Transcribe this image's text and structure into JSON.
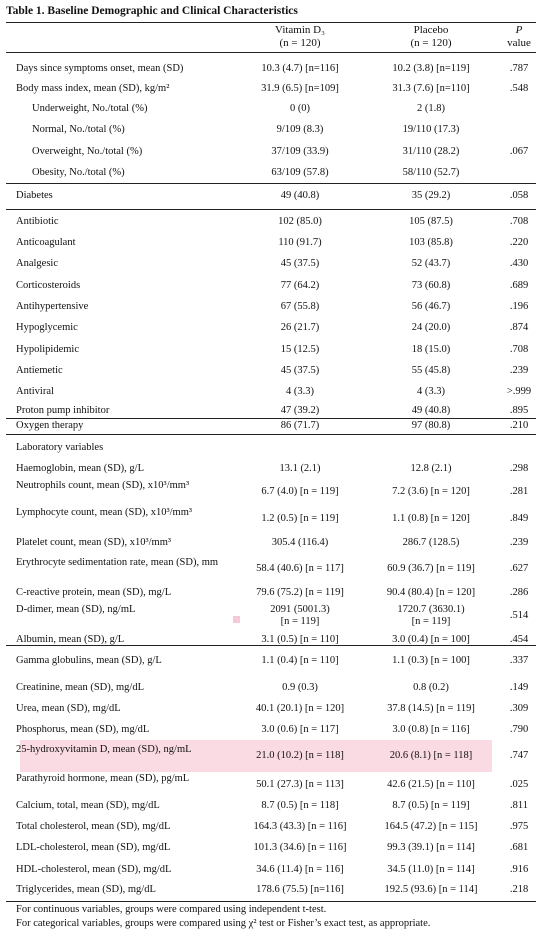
{
  "title": "Table 1. Baseline Demographic and Clinical Characteristics",
  "header": {
    "group1": "Vitamin D₃",
    "n1": "(n = 120)",
    "group2": "Placebo",
    "n2": "(n = 120)",
    "p1": "P",
    "p2": "value"
  },
  "rows": [
    {
      "label": "Days since symptoms onset, mean (SD)",
      "v1": "10.3 (4.7) [n=116]",
      "v2": "10.2 (3.8) [n=119]",
      "p": ".787"
    },
    {
      "label": "Body mass index, mean (SD), kg/m²",
      "v1": "31.9 (6.5) [n=109]",
      "v2": "31.3 (7.6) [n=110]",
      "p": ".548"
    },
    {
      "label": "Underweight, No./total (%)",
      "v1": "0 (0)",
      "v2": "2 (1.8)",
      "p": ""
    },
    {
      "label": "Normal, No./total (%)",
      "v1": "9/109 (8.3)",
      "v2": "19/110 (17.3)",
      "p": ""
    },
    {
      "label": "Overweight, No./total (%)",
      "v1": "37/109 (33.9)",
      "v2": "31/110 (28.2)",
      "p": ".067"
    },
    {
      "label": "Obesity, No./total (%)",
      "v1": "63/109 (57.8)",
      "v2": "58/110 (52.7)",
      "p": ""
    },
    {
      "label": "Diabetes",
      "v1": "49 (40.8)",
      "v2": "35 (29.2)",
      "p": ".058"
    },
    {
      "label": "Antibiotic",
      "v1": "102 (85.0)",
      "v2": "105 (87.5)",
      "p": ".708"
    },
    {
      "label": "Anticoagulant",
      "v1": "110 (91.7)",
      "v2": "103 (85.8)",
      "p": ".220"
    },
    {
      "label": "Analgesic",
      "v1": "45 (37.5)",
      "v2": "52 (43.7)",
      "p": ".430"
    },
    {
      "label": "Corticosteroids",
      "v1": "77 (64.2)",
      "v2": "73 (60.8)",
      "p": ".689"
    },
    {
      "label": "Antihypertensive",
      "v1": "67 (55.8)",
      "v2": "56 (46.7)",
      "p": ".196"
    },
    {
      "label": "Hypoglycemic",
      "v1": "26 (21.7)",
      "v2": "24 (20.0)",
      "p": ".874"
    },
    {
      "label": "Hypolipidemic",
      "v1": "15 (12.5)",
      "v2": "18 (15.0)",
      "p": ".708"
    },
    {
      "label": "Antiemetic",
      "v1": "45 (37.5)",
      "v2": "55 (45.8)",
      "p": ".239"
    },
    {
      "label": "Antiviral",
      "v1": "4 (3.3)",
      "v2": "4 (3.3)",
      "p": ">.999"
    },
    {
      "label": "Proton pump inhibitor",
      "v1": "47 (39.2)",
      "v2": "49 (40.8)",
      "p": ".895"
    },
    {
      "label": "Oxygen therapy",
      "v1": "86 (71.7)",
      "v2": "97 (80.8)",
      "p": ".210"
    },
    {
      "label": "Laboratory variables",
      "v1": "",
      "v2": "",
      "p": ""
    },
    {
      "label": "Haemoglobin, mean (SD), g/L",
      "v1": "13.1 (2.1)",
      "v2": "12.8 (2.1)",
      "p": ".298"
    },
    {
      "label": "Neutrophils count, mean (SD), x10³/mm³",
      "v1": "6.7 (4.0) [n = 119]",
      "v2": "7.2 (3.6) [n = 120]",
      "p": ".281"
    },
    {
      "label": "Lymphocyte count, mean (SD), x10³/mm³",
      "v1": "1.2 (0.5) [n = 119]",
      "v2": "1.1 (0.8) [n = 120]",
      "p": ".849"
    },
    {
      "label": "Platelet count, mean (SD), x10³/mm³",
      "v1": "305.4 (116.4)",
      "v2": "286.7 (128.5)",
      "p": ".239"
    },
    {
      "label": "Erythrocyte sedimentation rate, mean (SD), mm",
      "v1": "58.4 (40.6) [n = 117]",
      "v2": "60.9 (36.7) [n = 119]",
      "p": ".627"
    },
    {
      "label": "C-reactive protein, mean (SD), mg/L",
      "v1": "79.6 (75.2) [n = 119]",
      "v2": "90.4 (80.4) [n = 120]",
      "p": ".286"
    },
    {
      "label": "D-dimer, mean (SD), ng/mL",
      "v1": "2091 (5001.3)",
      "v1b": "[n = 119]",
      "v2": "1720.7 (3630.1)",
      "v2b": "[n = 119]",
      "p": ".514"
    },
    {
      "label": "Albumin, mean (SD), g/L",
      "v1": "3.1 (0.5) [n = 110]",
      "v2": "3.0 (0.4) [n = 100]",
      "p": ".454"
    },
    {
      "label": "Gamma globulins, mean (SD), g/L",
      "v1": "1.1 (0.4) [n = 110]",
      "v2": "1.1 (0.3) [n = 100]",
      "p": ".337"
    },
    {
      "label": "Creatinine, mean (SD), mg/dL",
      "v1": "0.9 (0.3)",
      "v2": "0.8 (0.2)",
      "p": ".149"
    },
    {
      "label": "Urea, mean (SD), mg/dL",
      "v1": "40.1 (20.1) [n = 120]",
      "v2": "37.8 (14.5) [n = 119]",
      "p": ".309"
    },
    {
      "label": "Phosphorus, mean (SD), mg/dL",
      "v1": "3.0 (0.6) [n = 117]",
      "v2": "3.0 (0.8) [n = 116]",
      "p": ".790"
    },
    {
      "label": "25-hydroxyvitamin D, mean (SD), ng/mL",
      "v1": "21.0 (10.2) [n = 118]",
      "v2": "20.6 (8.1) [n = 118]",
      "p": ".747"
    },
    {
      "label": "Parathyroid hormone, mean (SD), pg/mL",
      "v1": "50.1 (27.3) [n = 113]",
      "v2": "42.6 (21.5) [n = 110]",
      "p": ".025"
    },
    {
      "label": "Calcium, total, mean (SD), mg/dL",
      "v1": "8.7 (0.5) [n = 118]",
      "v2": "8.7 (0.5) [n = 119]",
      "p": ".811"
    },
    {
      "label": "Total cholesterol, mean (SD), mg/dL",
      "v1": "164.3 (43.3) [n = 116]",
      "v2": "164.5 (47.2) [n = 115]",
      "p": ".975"
    },
    {
      "label": "LDL-cholesterol, mean (SD), mg/dL",
      "v1": "101.3 (34.6) [n = 116]",
      "v2": "99.3 (39.1) [n = 114]",
      "p": ".681"
    },
    {
      "label": "HDL-cholesterol, mean (SD), mg/dL",
      "v1": "34.6 (11.4) [n = 116]",
      "v2": "34.5 (11.0) [n = 114]",
      "p": ".916"
    },
    {
      "label": "Triglycerides, mean (SD), mg/dL",
      "v1": "178.6 (75.5) [n=116]",
      "v2": "192.5 (93.6) [n = 114]",
      "p": ".218"
    }
  ],
  "notes": [
    "For continuous variables, groups were compared using independent t-test.",
    "For categorical variables, groups were compared using χ² test or Fisher’s exact test, as appropriate."
  ]
}
